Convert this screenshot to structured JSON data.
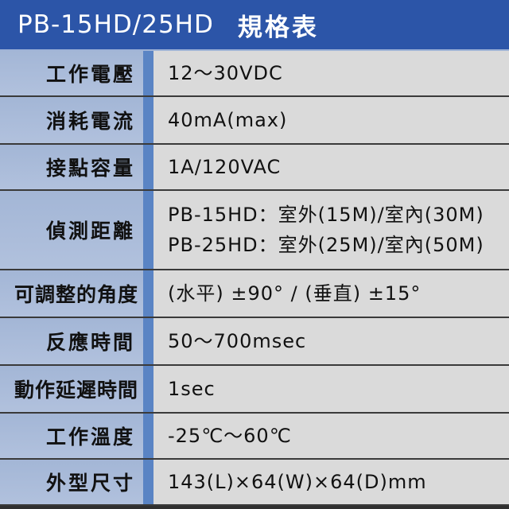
{
  "header": {
    "model": "PB-15HD/25HD",
    "title": "規格表"
  },
  "colors": {
    "header": "#2c55a8",
    "label_bg": "#a9bad8",
    "strip": "#5a84c4",
    "value_bg": "#dadada"
  },
  "rows": [
    {
      "label": "工作電壓",
      "values": [
        "12～30VDC"
      ]
    },
    {
      "label": "消耗電流",
      "values": [
        "40mA(max)"
      ]
    },
    {
      "label": "接點容量",
      "values": [
        "1A/120VAC"
      ]
    },
    {
      "label": "偵測距離",
      "values": [
        "PB-15HD：室外(15M)/室內(30M)",
        "PB-25HD：室外(25M)/室內(50M)"
      ]
    },
    {
      "label": "可調整的角度",
      "values": [
        "(水平) ±90° / (垂直) ±15°"
      ]
    },
    {
      "label": "反應時間",
      "values": [
        "50～700msec"
      ]
    },
    {
      "label": "動作延遲時間",
      "values": [
        "1sec"
      ]
    },
    {
      "label": "工作溫度",
      "values": [
        "-25℃～60℃"
      ]
    },
    {
      "label": "外型尺寸",
      "values": [
        "143(L)×64(W)×64(D)mm"
      ]
    }
  ]
}
